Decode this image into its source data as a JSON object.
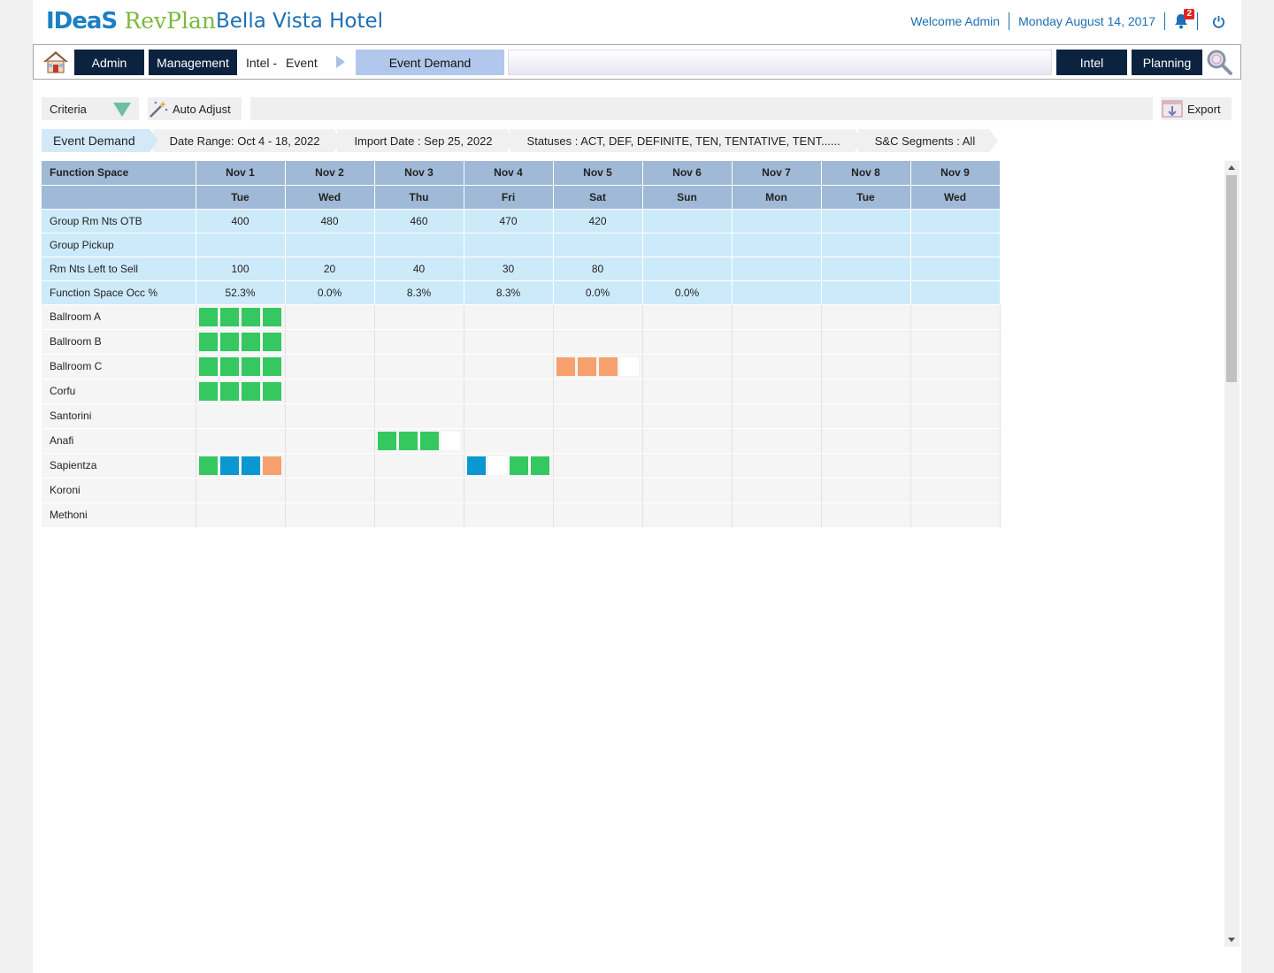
{
  "header": {
    "logo_ideas": "IDeaS",
    "logo_revplan": "RevPlan",
    "hotel_name": "Bella Vista Hotel",
    "welcome": "Welcome Admin",
    "date": "Monday August 14, 2017",
    "notification_count": "2"
  },
  "nav": {
    "admin": "Admin",
    "management": "Management",
    "intel_prefix": "Intel -",
    "event": "Event",
    "active": "Event Demand",
    "intel": "Intel",
    "planning": "Planning"
  },
  "toolbar": {
    "criteria": "Criteria",
    "auto_adjust": "Auto Adjust",
    "export": "Export"
  },
  "chips": [
    "Event Demand",
    "Date Range: Oct 4 - 18, 2022",
    "Import Date : Sep 25, 2022",
    "Statuses : ACT, DEF, DEFINITE, TEN, TENTATIVE, TENT......",
    "S&C Segments : All"
  ],
  "grid": {
    "header_label": "Function Space",
    "dates": [
      "Nov 1",
      "Nov 2",
      "Nov 3",
      "Nov 4",
      "Nov 5",
      "Nov 6",
      "Nov 7",
      "Nov 8",
      "Nov 9"
    ],
    "days": [
      "Tue",
      "Wed",
      "Thu",
      "Fri",
      "Sat",
      "Sun",
      "Mon",
      "Tue",
      "Wed"
    ],
    "metrics": [
      {
        "label": "Group Rm Nts OTB",
        "values": [
          "400",
          "480",
          "460",
          "470",
          "420",
          "",
          "",
          "",
          ""
        ]
      },
      {
        "label": "Group Pickup",
        "values": [
          "",
          "",
          "",
          "",
          "",
          "",
          "",
          "",
          ""
        ]
      },
      {
        "label": "Rm Nts Left to Sell",
        "values": [
          "100",
          "20",
          "40",
          "30",
          "80",
          "",
          "",
          "",
          ""
        ]
      },
      {
        "label": "Function Space Occ %",
        "values": [
          "52.3%",
          "0.0%",
          "8.3%",
          "8.3%",
          "0.0%",
          "0.0%",
          "",
          "",
          ""
        ]
      }
    ],
    "rooms": [
      {
        "name": "Ballroom A",
        "slots": [
          [
            "g",
            "g",
            "g",
            "g"
          ],
          [],
          [],
          [],
          [],
          [],
          [],
          [],
          []
        ]
      },
      {
        "name": "Ballroom B",
        "slots": [
          [
            "g",
            "g",
            "g",
            "g"
          ],
          [],
          [],
          [],
          [],
          [],
          [],
          [],
          []
        ]
      },
      {
        "name": "Ballroom C",
        "slots": [
          [
            "g",
            "g",
            "g",
            "g"
          ],
          [],
          [],
          [],
          [
            "o",
            "o",
            "o",
            "w"
          ],
          [],
          [],
          [],
          []
        ]
      },
      {
        "name": "Corfu",
        "slots": [
          [
            "g",
            "g",
            "g",
            "g"
          ],
          [],
          [],
          [],
          [],
          [],
          [],
          [],
          []
        ]
      },
      {
        "name": "Santorini",
        "slots": [
          [],
          [],
          [],
          [],
          [],
          [],
          [],
          [],
          []
        ]
      },
      {
        "name": "Anafi",
        "slots": [
          [],
          [],
          [
            "g",
            "g",
            "g",
            "w"
          ],
          [],
          [],
          [],
          [],
          [],
          []
        ]
      },
      {
        "name": "Sapientza",
        "slots": [
          [
            "g",
            "b",
            "b",
            "o"
          ],
          [],
          [],
          [
            "b",
            "w",
            "g",
            "g"
          ],
          [],
          [],
          [],
          [],
          []
        ]
      },
      {
        "name": "Koroni",
        "slots": [
          [],
          [],
          [],
          [],
          [],
          [],
          [],
          [],
          []
        ]
      },
      {
        "name": "Methoni",
        "slots": [
          [],
          [],
          [],
          [],
          [],
          [],
          [],
          [],
          []
        ]
      }
    ],
    "slot_colors": {
      "g": "#35c760",
      "o": "#f6a06d",
      "b": "#0b97d0",
      "w": "#ffffff"
    }
  }
}
